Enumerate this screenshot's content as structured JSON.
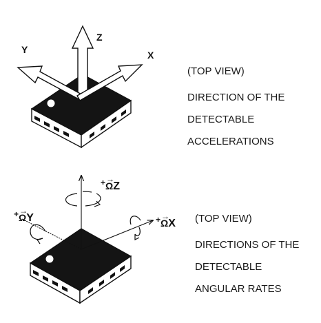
{
  "top_diagram": {
    "axis_labels": {
      "x": "X",
      "y": "Y",
      "z": "Z"
    },
    "caption_lines": [
      "(TOP VIEW)",
      "DIRECTION OF THE",
      "DETECTABLE",
      "ACCELERATIONS"
    ]
  },
  "bottom_diagram": {
    "rate_labels": {
      "z": {
        "sign": "+",
        "symbol": "Ω",
        "axis": "Z"
      },
      "y": {
        "sign": "+",
        "symbol": "Ω",
        "axis": "Y"
      },
      "x": {
        "sign": "+",
        "symbol": "Ω",
        "axis": "X"
      }
    },
    "caption_lines": [
      "(TOP VIEW)",
      "DIRECTIONS OF THE",
      "DETECTABLE",
      "ANGULAR RATES"
    ]
  },
  "colors": {
    "ink": "#111111",
    "package_top": "#141414",
    "package_side": "#ffffff"
  }
}
